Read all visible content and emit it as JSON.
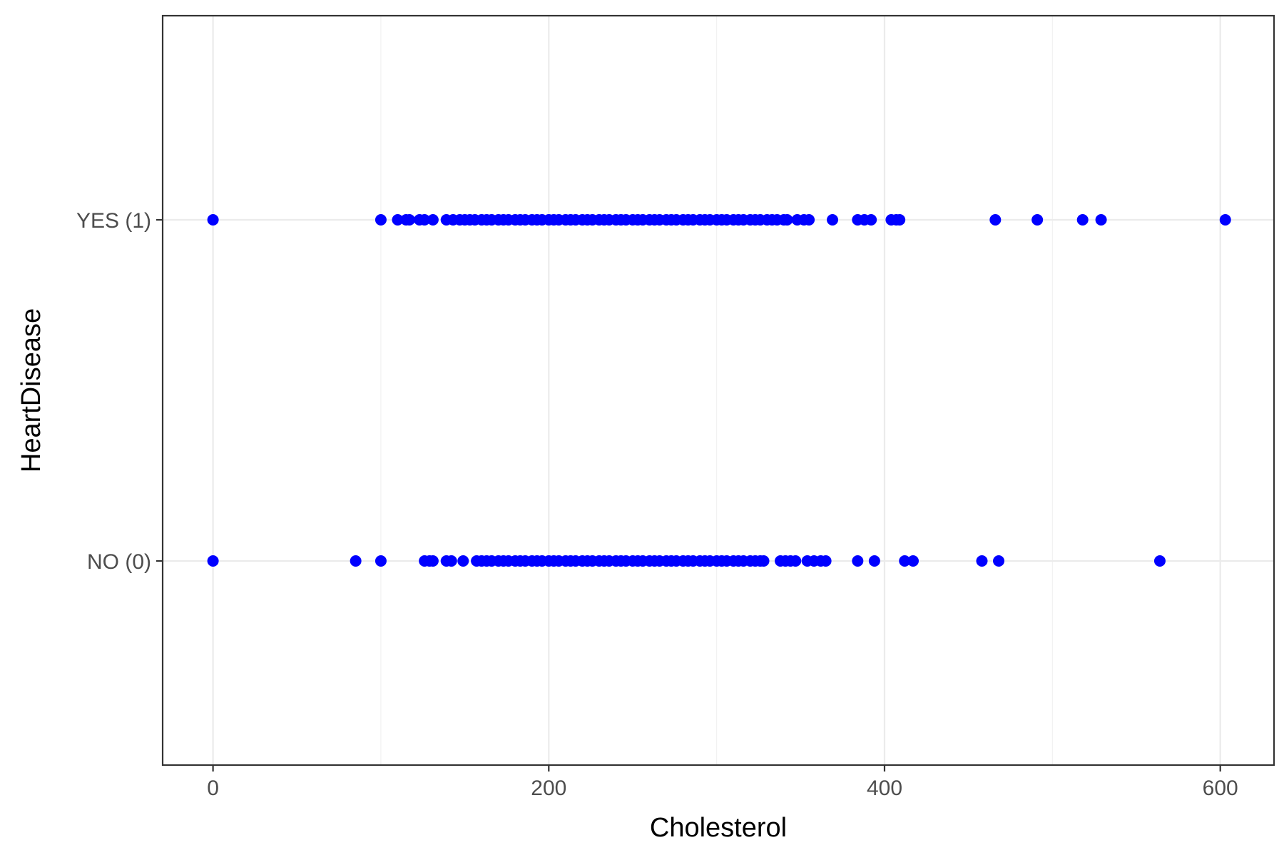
{
  "chart_data": {
    "type": "scatter",
    "title": "",
    "xlabel": "Cholesterol",
    "ylabel": "HeartDisease",
    "xlim": [
      -30,
      632
    ],
    "x_ticks": [
      0,
      200,
      400,
      600
    ],
    "y_categories": [
      "NO (0)",
      "YES (1)"
    ],
    "grid": true,
    "legend": "none",
    "point_color": "#0000ff",
    "series": [
      {
        "category": "YES (1)",
        "x": [
          0,
          100,
          110,
          115,
          117,
          123,
          126,
          131,
          139,
          143,
          147,
          150,
          153,
          156,
          160,
          163,
          166,
          170,
          173,
          176,
          180,
          183,
          186,
          190,
          193,
          196,
          200,
          203,
          206,
          210,
          213,
          216,
          220,
          223,
          226,
          230,
          233,
          236,
          240,
          243,
          246,
          250,
          253,
          256,
          260,
          263,
          266,
          270,
          273,
          276,
          280,
          283,
          286,
          290,
          293,
          296,
          300,
          303,
          306,
          310,
          313,
          316,
          320,
          323,
          326,
          330,
          333,
          336,
          340,
          342,
          348,
          352,
          355,
          369,
          384,
          388,
          392,
          404,
          407,
          409,
          466,
          491,
          518,
          529,
          603
        ]
      },
      {
        "category": "NO (0)",
        "x": [
          0,
          85,
          100,
          126,
          129,
          131,
          139,
          142,
          149,
          157,
          160,
          163,
          166,
          170,
          173,
          176,
          180,
          183,
          186,
          190,
          193,
          196,
          200,
          203,
          206,
          210,
          213,
          216,
          220,
          223,
          226,
          230,
          233,
          236,
          240,
          243,
          246,
          250,
          253,
          256,
          260,
          263,
          266,
          270,
          273,
          276,
          280,
          283,
          286,
          290,
          293,
          296,
          300,
          303,
          306,
          310,
          313,
          316,
          320,
          323,
          326,
          328,
          338,
          341,
          344,
          347,
          354,
          358,
          362,
          365,
          384,
          394,
          412,
          417,
          458,
          468,
          564
        ]
      }
    ]
  }
}
